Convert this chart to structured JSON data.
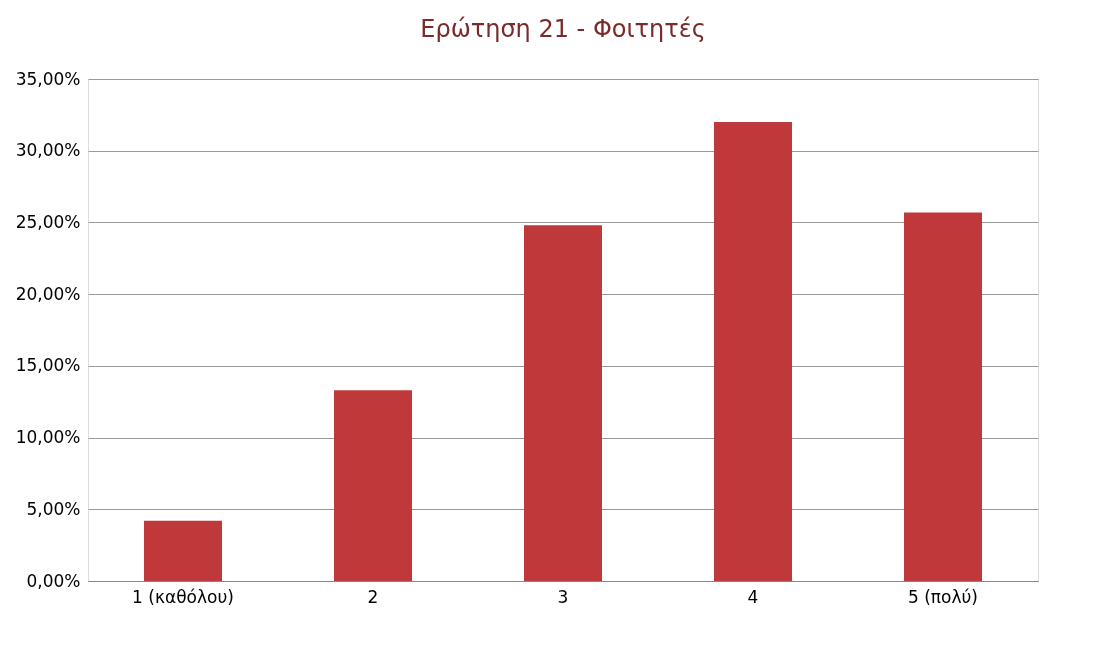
{
  "chart_data": {
    "type": "bar",
    "title": "Ερώτηση 21 - Φοιτητές",
    "categories": [
      "1 (καθόλου)",
      "2",
      "3",
      "4",
      "5 (πολύ)"
    ],
    "values": [
      4.2,
      13.3,
      24.8,
      32.0,
      25.7
    ],
    "color": "#c0393a",
    "ylim": [
      0,
      35
    ],
    "yticks": [
      {
        "value": 0,
        "label": "0,00%"
      },
      {
        "value": 5,
        "label": "5,00%"
      },
      {
        "value": 10,
        "label": "10,00%"
      },
      {
        "value": 15,
        "label": "15,00%"
      },
      {
        "value": 20,
        "label": "20,00%"
      },
      {
        "value": 25,
        "label": "25,00%"
      },
      {
        "value": 30,
        "label": "30,00%"
      },
      {
        "value": 35,
        "label": "35,00%"
      }
    ],
    "grid": "y"
  }
}
